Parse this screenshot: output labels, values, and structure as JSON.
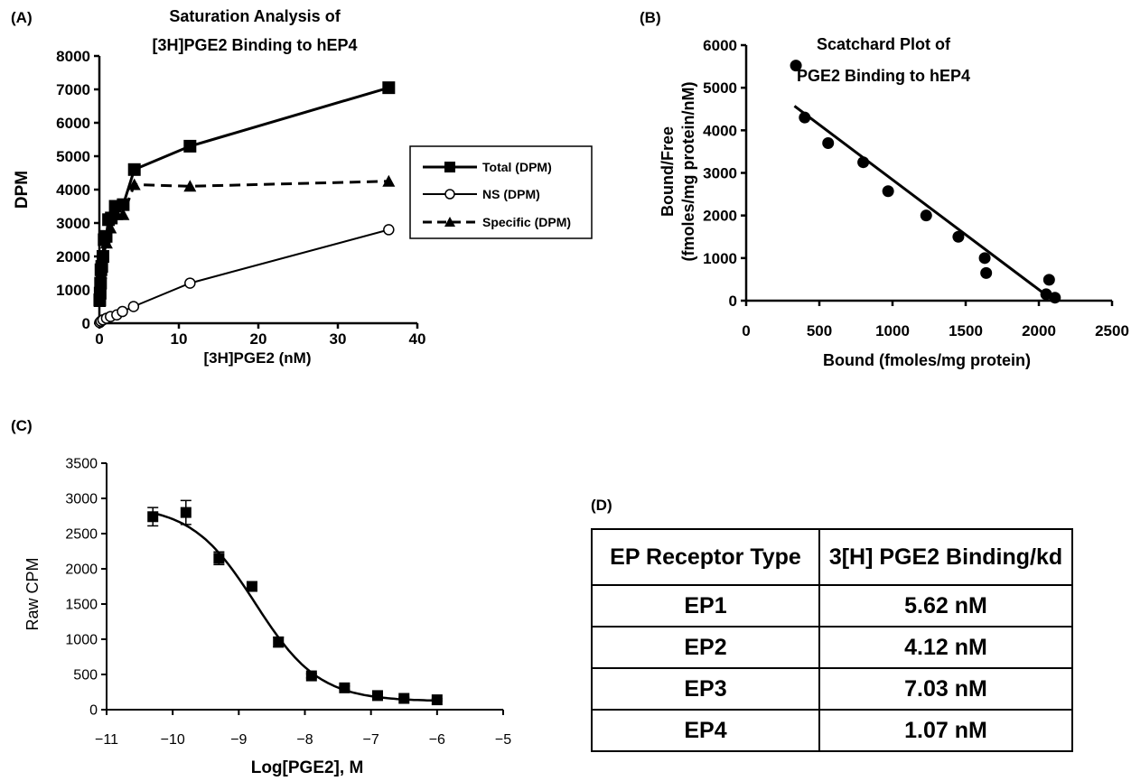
{
  "panels": {
    "A": {
      "label": "(A)",
      "title_lines": [
        "Saturation Analysis of",
        "[3H]PGE2 Binding to hEP4"
      ],
      "xlabel": "[3H]PGE2 (nM)",
      "ylabel": "DPM",
      "legend": {
        "total": "Total (DPM)",
        "ns": "NS (DPM)",
        "specific": "Specific (DPM)"
      }
    },
    "B": {
      "label": "(B)",
      "title_lines": [
        "Scatchard Plot of",
        "PGE2 Binding to hEP4"
      ],
      "xlabel": "Bound (fmoles/mg protein)",
      "ylabel_lines": [
        "Bound/Free",
        "(fmoles/mg protein/nM)"
      ]
    },
    "C": {
      "label": "(C)",
      "xlabel": "Log[PGE2], M",
      "ylabel": "Raw CPM"
    },
    "D": {
      "label": "(D)",
      "table": {
        "headers": [
          "EP Receptor Type",
          "3[H] PGE2 Binding/kd"
        ],
        "rows": [
          [
            "EP1",
            "5.62 nM"
          ],
          [
            "EP2",
            "4.12 nM"
          ],
          [
            "EP3",
            "7.03 nM"
          ],
          [
            "EP4",
            "1.07 nM"
          ]
        ]
      }
    }
  },
  "chart_data": [
    {
      "panel": "A",
      "type": "line",
      "xlabel": "[3H]PGE2 (nM)",
      "ylabel": "DPM",
      "xlim": [
        0,
        40
      ],
      "ylim": [
        0,
        8000
      ],
      "xticks": [
        0,
        10,
        20,
        30,
        40
      ],
      "yticks": [
        0,
        1000,
        2000,
        3000,
        4000,
        5000,
        6000,
        7000,
        8000
      ],
      "legend_position": "right",
      "series": [
        {
          "name": "Total (DPM)",
          "style": "solid",
          "marker": "square",
          "x": [
            0.05,
            0.1,
            0.15,
            0.2,
            0.3,
            0.45,
            0.6,
            0.85,
            1.15,
            1.5,
            2.0,
            3.0,
            4.4,
            11.4,
            36.4
          ],
          "y": [
            700,
            900,
            1200,
            1600,
            1700,
            2000,
            2500,
            2600,
            3100,
            3150,
            3500,
            3550,
            4600,
            5300,
            7050
          ]
        },
        {
          "name": "NS (DPM)",
          "style": "solid",
          "marker": "open-circle",
          "x": [
            0.05,
            0.2,
            0.45,
            0.9,
            1.4,
            2.2,
            2.9,
            4.3,
            11.4,
            36.4
          ],
          "y": [
            20,
            60,
            100,
            150,
            200,
            250,
            350,
            500,
            1200,
            2800
          ]
        },
        {
          "name": "Specific (DPM)",
          "style": "dashed",
          "marker": "triangle",
          "x": [
            0.05,
            0.2,
            0.45,
            0.9,
            1.4,
            2.2,
            3.0,
            4.4,
            11.4,
            36.4
          ],
          "y": [
            650,
            1500,
            2000,
            2400,
            2850,
            3250,
            3250,
            4150,
            4100,
            4250
          ]
        }
      ]
    },
    {
      "panel": "B",
      "type": "scatter",
      "xlabel": "Bound (fmoles/mg protein)",
      "ylabel": "Bound/Free (fmoles/mg protein/nM)",
      "xlim": [
        0,
        2500
      ],
      "ylim": [
        0,
        6000
      ],
      "xticks": [
        0,
        500,
        1000,
        1500,
        2000,
        2500
      ],
      "yticks": [
        0,
        1000,
        2000,
        3000,
        4000,
        5000,
        6000
      ],
      "series": [
        {
          "name": "",
          "marker": "filled-circle",
          "x": [
            340,
            400,
            560,
            800,
            970,
            1230,
            1450,
            1630,
            1640,
            2050,
            2070,
            2110
          ],
          "y": [
            5520,
            4300,
            3700,
            3250,
            2570,
            2000,
            1500,
            1000,
            650,
            150,
            490,
            70
          ]
        }
      ],
      "fit_line": {
        "x": [
          330,
          2100
        ],
        "y": [
          4570,
          0
        ]
      }
    },
    {
      "panel": "C",
      "type": "scatter",
      "xlabel": "Log[PGE2], M",
      "ylabel": "Raw CPM",
      "xlim": [
        -11,
        -5
      ],
      "ylim": [
        0,
        3500
      ],
      "xticks": [
        -11,
        -10,
        -9,
        -8,
        -7,
        -6,
        -5
      ],
      "yticks": [
        0,
        500,
        1000,
        1500,
        2000,
        2500,
        3000,
        3500
      ],
      "series": [
        {
          "name": "",
          "marker": "filled-square",
          "x": [
            -10.3,
            -9.8,
            -9.3,
            -8.8,
            -8.4,
            -7.9,
            -7.4,
            -6.9,
            -6.5,
            -6.0
          ],
          "y": [
            2740,
            2800,
            2150,
            1750,
            960,
            480,
            310,
            200,
            160,
            140
          ],
          "err": [
            130,
            170,
            90,
            60,
            70,
            30,
            25,
            20,
            15,
            15
          ]
        }
      ],
      "fit_curve": {
        "model": "sigmoid",
        "top": 2900,
        "bottom": 120,
        "log_ic50": -8.75,
        "hill": 0.9
      }
    }
  ]
}
